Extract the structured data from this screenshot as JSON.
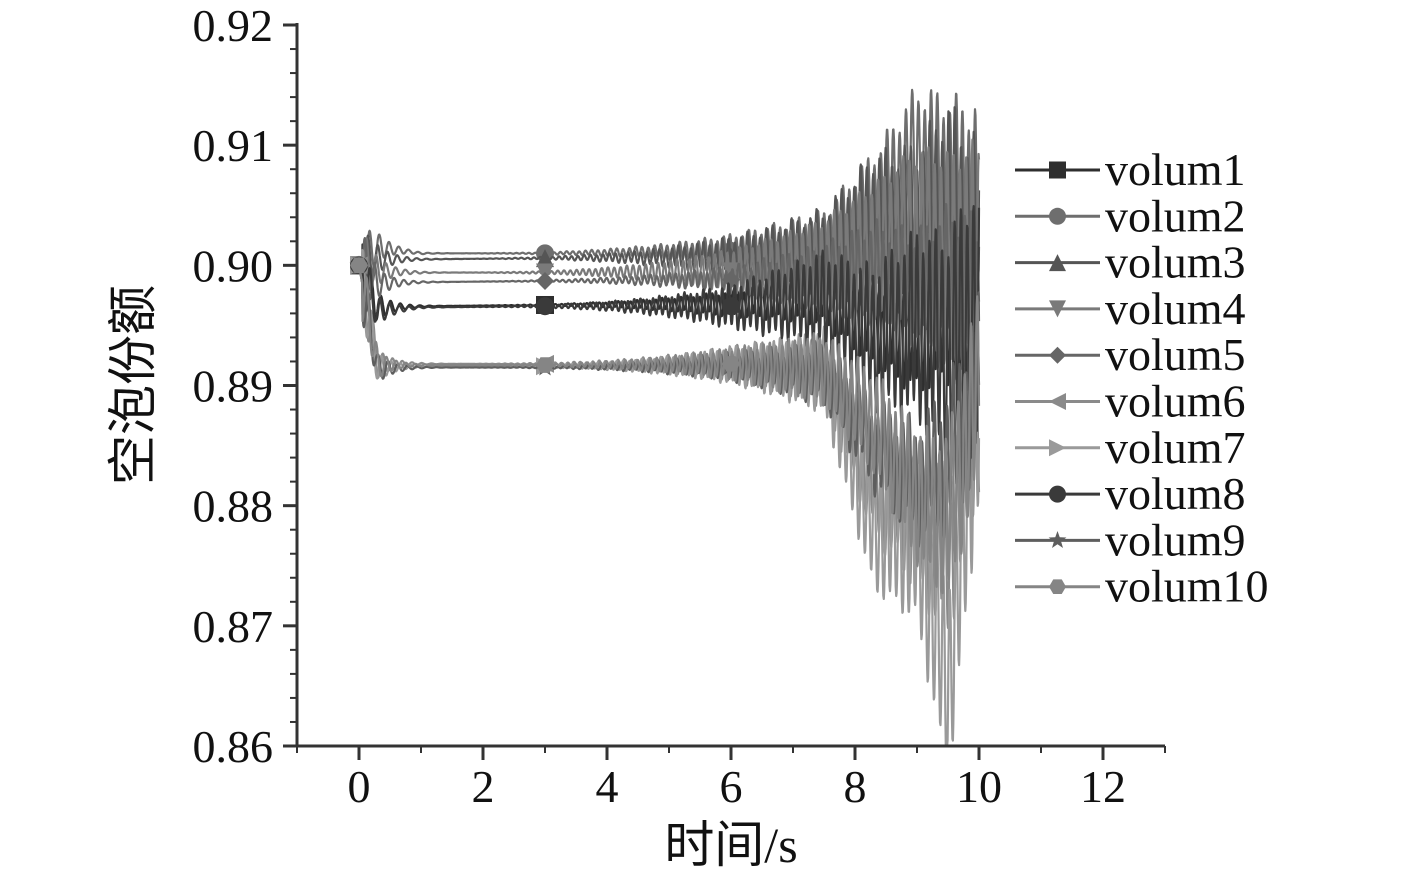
{
  "chart_data": {
    "type": "line",
    "title": "",
    "xlabel": "时间/s",
    "ylabel": "空泡份额",
    "xlim": [
      -1,
      13
    ],
    "ylim": [
      0.86,
      0.92
    ],
    "xticks": [
      0,
      2,
      4,
      6,
      8,
      10,
      12
    ],
    "xtick_labels": [
      "0",
      "2",
      "4",
      "6",
      "8",
      "10",
      "12"
    ],
    "yticks": [
      0.86,
      0.87,
      0.88,
      0.89,
      0.9,
      0.91,
      0.92
    ],
    "ytick_labels": [
      "0.86",
      "0.87",
      "0.88",
      "0.89",
      "0.90",
      "0.91",
      "0.92"
    ],
    "grid": false,
    "legend_position": "right",
    "x_range": [
      0,
      10
    ],
    "series": [
      {
        "name": "volum1",
        "marker": "square",
        "color": "#2e2e2e",
        "x": [
          0,
          0.3,
          1,
          3,
          6,
          7.5,
          8.3,
          9.0,
          9.5,
          10
        ],
        "y": [
          0.9,
          0.8965,
          0.8966,
          0.8967,
          0.8968,
          0.8975,
          0.895,
          0.894,
          0.896,
          0.895
        ]
      },
      {
        "name": "volum2",
        "marker": "circle",
        "color": "#6e6e6e",
        "x": [
          0,
          0.3,
          1,
          3,
          6,
          7.5,
          8.3,
          9.0,
          9.5,
          10
        ],
        "y": [
          0.9,
          0.9015,
          0.901,
          0.901,
          0.9012,
          0.9015,
          0.905,
          0.909,
          0.907,
          0.905
        ]
      },
      {
        "name": "volum3",
        "marker": "triangle-up",
        "color": "#555555",
        "x": [
          0,
          0.3,
          1,
          3,
          6,
          7.5,
          8.3,
          9.0,
          9.5,
          10
        ],
        "y": [
          0.9,
          0.9005,
          0.9005,
          0.9006,
          0.9007,
          0.901,
          0.904,
          0.903,
          0.905,
          0.9
        ]
      },
      {
        "name": "volum4",
        "marker": "triangle-down",
        "color": "#7a7a7a",
        "x": [
          0,
          0.3,
          1,
          3,
          6,
          7.5,
          8.3,
          9.0,
          9.5,
          10
        ],
        "y": [
          0.9,
          0.8995,
          0.8994,
          0.8994,
          0.8995,
          0.8998,
          0.901,
          0.902,
          0.9,
          0.899
        ]
      },
      {
        "name": "volum5",
        "marker": "diamond",
        "color": "#666666",
        "x": [
          0,
          0.3,
          1,
          3,
          6,
          7.5,
          8.3,
          9.0,
          9.5,
          10
        ],
        "y": [
          0.9,
          0.8985,
          0.8986,
          0.8987,
          0.8988,
          0.8992,
          0.9,
          0.898,
          0.899,
          0.897
        ]
      },
      {
        "name": "volum6",
        "marker": "triangle-left",
        "color": "#8a8a8a",
        "x": [
          0,
          0.3,
          1,
          3,
          6,
          7.5,
          8.3,
          9.0,
          9.5,
          10
        ],
        "y": [
          0.9,
          0.8918,
          0.8918,
          0.8918,
          0.8918,
          0.8915,
          0.882,
          0.879,
          0.876,
          0.89
        ]
      },
      {
        "name": "volum7",
        "marker": "triangle-right",
        "color": "#9a9a9a",
        "x": [
          0,
          0.3,
          1,
          3,
          6,
          7.5,
          8.3,
          9.0,
          9.5,
          10
        ],
        "y": [
          0.9,
          0.8915,
          0.8916,
          0.8916,
          0.8917,
          0.8912,
          0.878,
          0.877,
          0.865,
          0.89
        ]
      },
      {
        "name": "volum8",
        "marker": "circle",
        "color": "#3a3a3a",
        "x": [
          0,
          0.3,
          1,
          3,
          6,
          7.5,
          8.3,
          9.0,
          9.5,
          10
        ],
        "y": [
          0.9,
          0.8962,
          0.8965,
          0.8966,
          0.8966,
          0.897,
          0.894,
          0.895,
          0.893,
          0.896
        ]
      },
      {
        "name": "volum9",
        "marker": "star",
        "color": "#5e5e5e",
        "x": [
          0,
          0.3,
          1,
          3,
          6,
          7.5,
          8.3,
          9.0,
          9.5,
          10
        ],
        "y": [
          0.9,
          0.8914,
          0.8915,
          0.8915,
          0.8916,
          0.891,
          0.885,
          0.882,
          0.884,
          0.89
        ]
      },
      {
        "name": "volum10",
        "marker": "hexagon",
        "color": "#858585",
        "x": [
          0,
          0.3,
          1,
          3,
          6,
          7.5,
          8.3,
          9.0,
          9.5,
          10
        ],
        "y": [
          0.9,
          0.8917,
          0.8917,
          0.8917,
          0.8918,
          0.8914,
          0.887,
          0.881,
          0.879,
          0.89
        ]
      }
    ]
  }
}
